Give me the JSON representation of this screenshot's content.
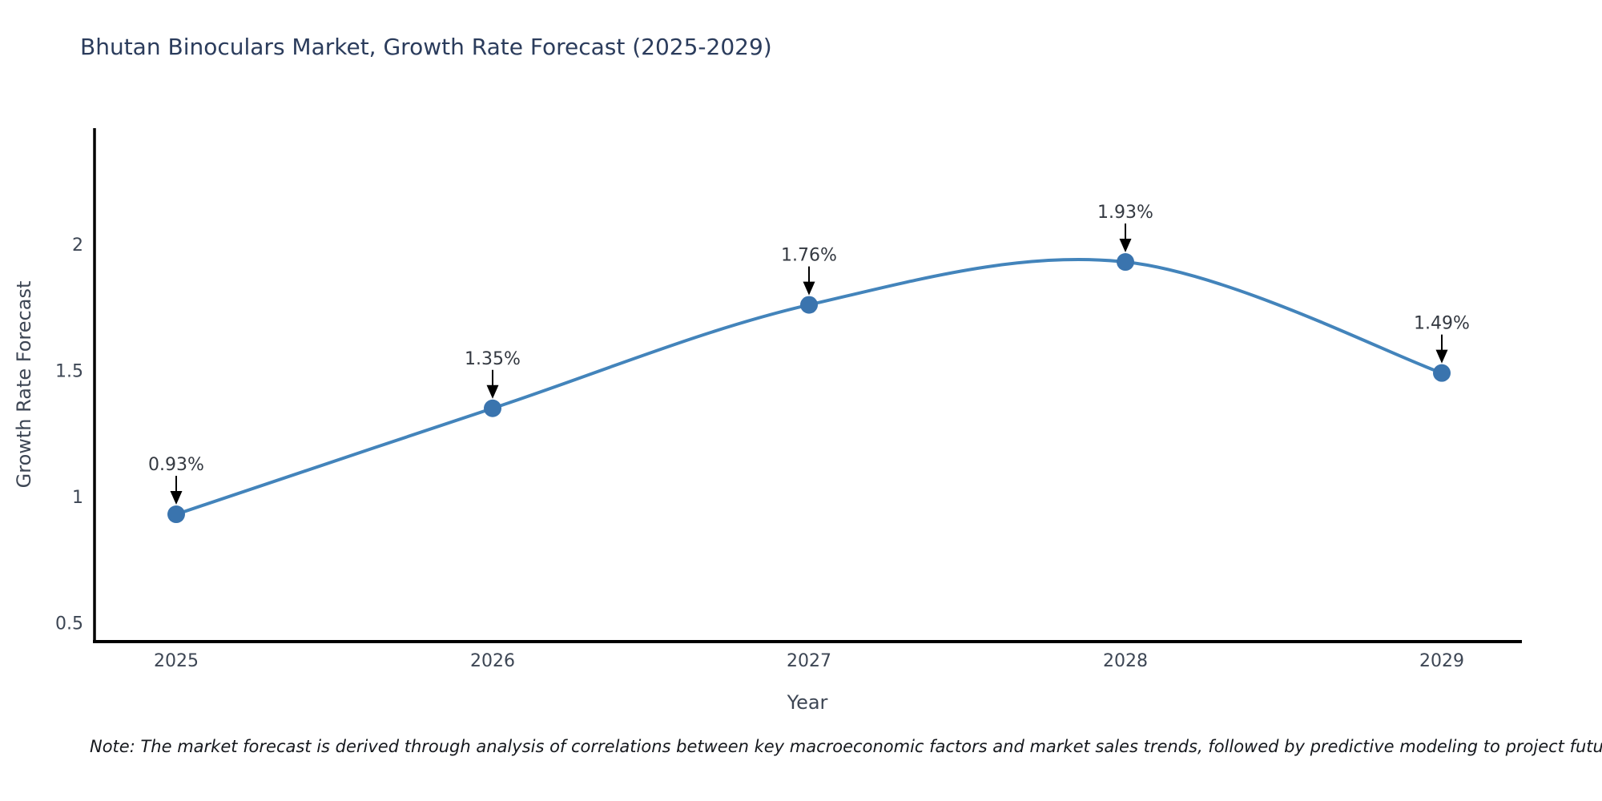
{
  "page": {
    "background": "#ffffff"
  },
  "chart_data": {
    "type": "line",
    "title": "Bhutan Binoculars Market, Growth Rate Forecast (2025-2029)",
    "xlabel": "Year",
    "ylabel": "Growth Rate Forecast",
    "x": [
      2025,
      2026,
      2027,
      2028,
      2029
    ],
    "values": [
      0.93,
      1.35,
      1.76,
      1.93,
      1.49
    ],
    "point_labels": [
      "0.93%",
      "1.35%",
      "1.76%",
      "1.93%",
      "1.49%"
    ],
    "yticks": [
      0.5,
      1,
      1.5,
      2
    ],
    "ylim": [
      0.42,
      2.46
    ],
    "line_shape": "spline",
    "grid": false,
    "legend": "none",
    "colors": {
      "line": "#4384bb",
      "marker": "#3a74ae",
      "axis": "#000000",
      "arrow": "#000000",
      "title_text": "#2b3c5c",
      "tick_text": "#3d4654",
      "annotation_text": "#343941"
    }
  },
  "note": {
    "text": "Note: The market forecast is derived through analysis of correlations between key macroeconomic factors and market sales trends, followed by predictive modeling to project future sales"
  }
}
